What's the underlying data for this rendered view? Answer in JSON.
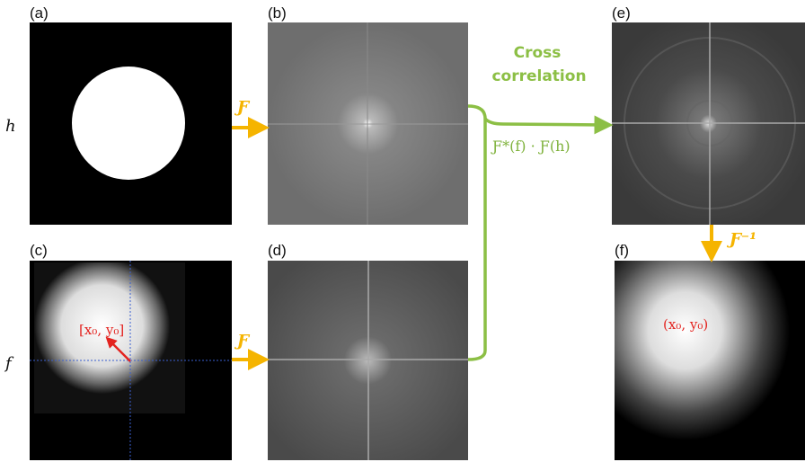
{
  "panels": [
    "(a)",
    "(b)",
    "(c)",
    "(d)",
    "(e)",
    "(f)"
  ],
  "row_labels": [
    "h",
    "f"
  ],
  "transform_labels": [
    "Ƒ",
    "Ƒ"
  ],
  "operation": {
    "title_lines": [
      "Cross",
      "correlation"
    ],
    "formula": "Ƒ*(f) · Ƒ(h)"
  },
  "inverse_label": "Ƒ⁻¹",
  "annotations": [
    "[x₀, y₀]",
    "(x₀, y₀)"
  ]
}
